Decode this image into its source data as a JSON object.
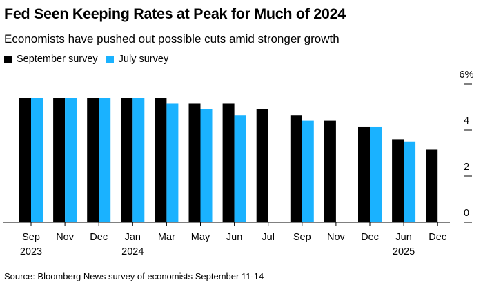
{
  "chart_data": {
    "type": "bar",
    "title": "Fed Seen Keeping Rates at Peak for Much of 2024",
    "subtitle": "Economists have pushed out possible cuts amid stronger growth",
    "categories": [
      "Sep",
      "Nov",
      "Dec",
      "Jan",
      "Mar",
      "May",
      "Jun",
      "Jul",
      "Sep",
      "Nov",
      "Dec",
      "Jun",
      "Dec"
    ],
    "category_years": [
      "2023",
      "",
      "",
      "2024",
      "",
      "",
      "",
      "",
      "",
      "",
      "",
      "2025",
      ""
    ],
    "series": [
      {
        "name": "September survey",
        "color": "#000000",
        "values": [
          5.4,
          5.4,
          5.4,
          5.4,
          5.4,
          5.15,
          5.15,
          4.9,
          4.65,
          4.4,
          4.15,
          3.6,
          3.15
        ]
      },
      {
        "name": "July survey",
        "color": "#1ab2ff",
        "values": [
          5.4,
          5.4,
          5.4,
          5.4,
          5.15,
          4.9,
          4.65,
          null,
          4.4,
          null,
          4.15,
          3.5,
          null
        ]
      }
    ],
    "ylim": [
      0,
      6
    ],
    "yticks": [
      0,
      2,
      4,
      6
    ],
    "ytick_labels": [
      "0",
      "2",
      "4",
      "6%"
    ],
    "legend_position": "top-left",
    "grid": false
  },
  "source": "Source: Bloomberg News survey of economists September 11-14"
}
